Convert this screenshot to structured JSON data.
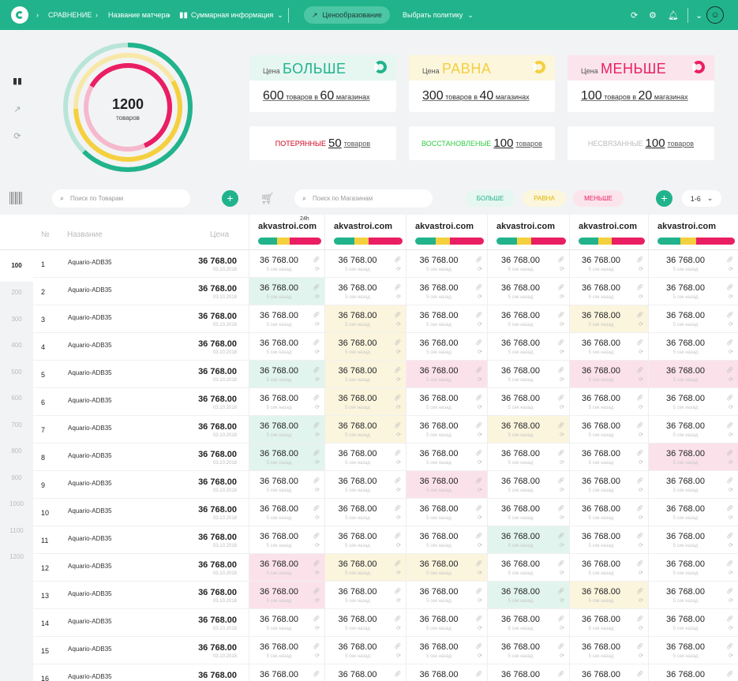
{
  "topbar": {
    "crumb1": "СРАВНЕНИЕ",
    "crumb2": "Название матчера",
    "crumb3": "Суммарная информация",
    "pill": "Ценообразование",
    "policy": "Выбрать политику"
  },
  "donut": {
    "count": "1200",
    "unit": "товаров"
  },
  "stats": [
    {
      "label": "Цена",
      "word": "БОЛЬШЕ",
      "items": "600",
      "items_txt": "товаров в",
      "shops": "60",
      "shops_txt": "магазинах",
      "bg": "#e6f6f1",
      "color": "#21b38c"
    },
    {
      "label": "Цена",
      "word": "РАВНА",
      "items": "300",
      "items_txt": "товаров в",
      "shops": "40",
      "shops_txt": "магазинах",
      "bg": "#fcf6dc",
      "color": "#f4d03f"
    },
    {
      "label": "Цена",
      "word": "МЕНЬШЕ",
      "items": "100",
      "items_txt": "товаров в",
      "shops": "20",
      "shops_txt": "магазинах",
      "bg": "#fbe4ec",
      "color": "#e91e63"
    }
  ],
  "small": [
    {
      "label": "ПОТЕРЯННЫЕ",
      "count": "50",
      "unit": "товаров",
      "color": "#d0021b"
    },
    {
      "label": "ВОССТАНОВЛЕНЫЕ",
      "count": "100",
      "unit": "товаров",
      "color": "#2ecc40"
    },
    {
      "label": "НЕСВЯЗАННЫЕ",
      "count": "100",
      "unit": "товаров",
      "color": "#bbbbbb"
    }
  ],
  "filters": {
    "goods_ph": "Поиск по Товарам",
    "shops_ph": "Поиск по Магазинам",
    "more": "БОЛЬШЕ",
    "equal": "РАВНА",
    "less": "МЕНЬШЕ",
    "pager": "1-6"
  },
  "table": {
    "col_num": "№",
    "col_name": "Название",
    "col_price": "Цена",
    "tag_24h": "24h",
    "price": "36 768.00",
    "date": "03.10.2018",
    "ago": "5 сек назад",
    "product": "Aquario-ADB35",
    "pages": [
      "100",
      "200",
      "300",
      "400",
      "500",
      "600",
      "700",
      "800",
      "900",
      "1000",
      "1100",
      "1200"
    ],
    "shops": [
      "akvastroi.com",
      "akvastroi.com",
      "akvastroi.com",
      "akvastroi.com",
      "akvastroi.com",
      "akvastroi.com"
    ],
    "rows": [
      "1",
      "2",
      "3",
      "4",
      "5",
      "6",
      "7",
      "8",
      "9",
      "10",
      "11",
      "12",
      "13",
      "14",
      "15",
      "16"
    ],
    "highlights": [
      "......",
      "g.....",
      ".y..y.",
      ".y....",
      "gyp.pp",
      ".y....",
      "gy.y..",
      "g....p",
      "..p...",
      "......",
      "...g..",
      "pyy...",
      "p..gy.",
      "......",
      "......",
      "......"
    ]
  }
}
